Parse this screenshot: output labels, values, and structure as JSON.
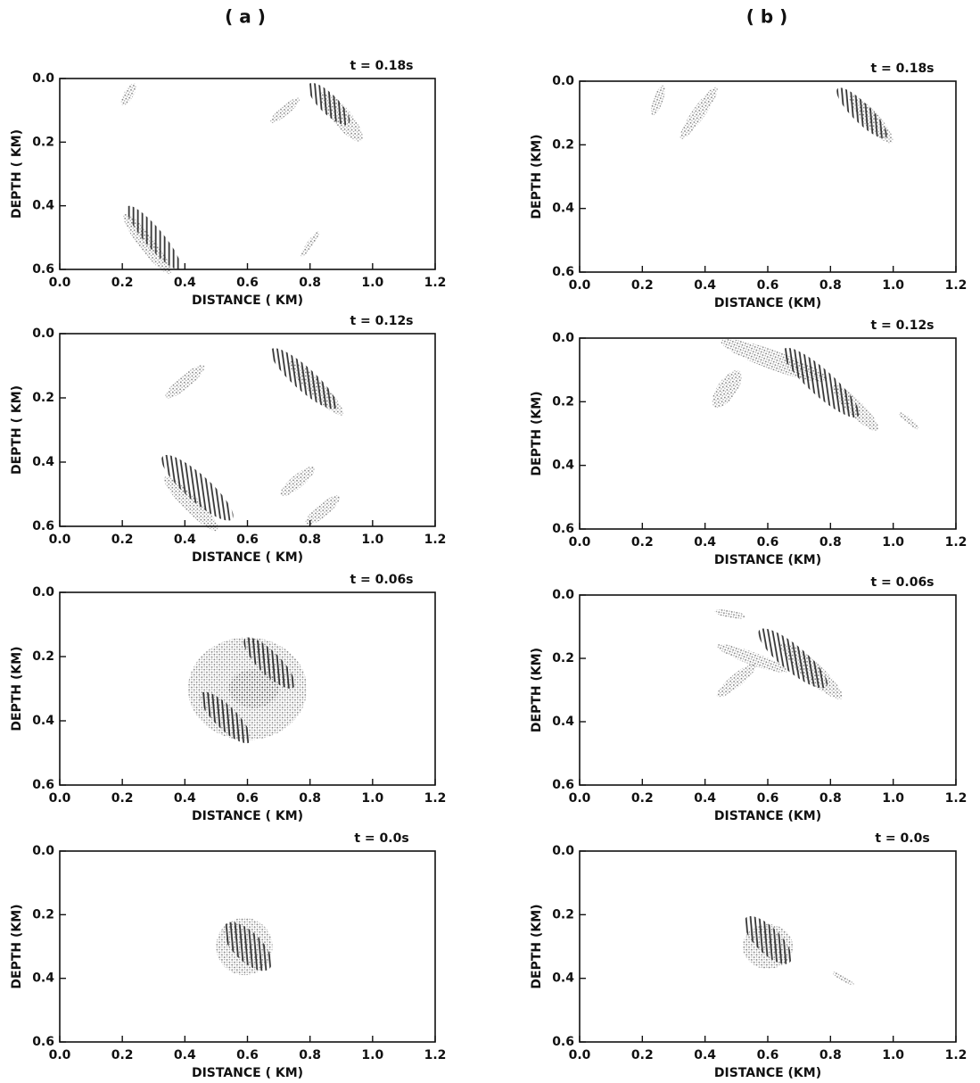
{
  "columns": [
    "( a )",
    "( b )"
  ],
  "chart_data": [
    {
      "type": "field",
      "title": "t = 0.18s",
      "xlabel": "DISTANCE ( KM)",
      "ylabel": "DEPTH ( KM)",
      "xlim": [
        0,
        1.2
      ],
      "ylim": [
        0.6,
        0
      ],
      "xticks": [
        {
          "value": 0,
          "label": "0.0"
        },
        0.2,
        0.4,
        0.6,
        0.8,
        {
          "value": 1,
          "label": "1.0"
        },
        1.2
      ],
      "yticks": [
        {
          "value": 0,
          "label": "0.0"
        },
        0.2,
        0.4,
        0.6
      ]
    },
    {
      "type": "field",
      "title": "t = 0.18s",
      "xlabel": "DISTANCE (KM)",
      "ylabel": "DEPTH (KM)",
      "xlim": [
        0,
        1.2
      ],
      "ylim": [
        0.6,
        0
      ],
      "xticks": [
        {
          "value": 0,
          "label": "0.0"
        },
        0.2,
        0.4,
        0.6,
        0.8,
        {
          "value": 1,
          "label": "1.0"
        },
        1.2
      ],
      "yticks": [
        {
          "value": 0,
          "label": "0.0"
        },
        0.2,
        0.4,
        0.6
      ]
    },
    {
      "type": "field",
      "title": "t = 0.12s",
      "xlabel": "DISTANCE ( KM)",
      "ylabel": "DEPTH ( KM)",
      "xlim": [
        0,
        1.2
      ],
      "ylim": [
        0.6,
        0
      ],
      "xticks": [
        {
          "value": 0,
          "label": "0.0"
        },
        0.2,
        0.4,
        0.6,
        0.8,
        {
          "value": 1,
          "label": "1.0"
        },
        1.2
      ],
      "yticks": [
        {
          "value": 0,
          "label": "0.0"
        },
        0.2,
        0.4,
        0.6
      ]
    },
    {
      "type": "field",
      "title": "t = 0.12s",
      "xlabel": "DISTANCE (KM)",
      "ylabel": "DEPTH (KM)",
      "xlim": [
        0,
        1.2
      ],
      "ylim": [
        0.6,
        0
      ],
      "xticks": [
        {
          "value": 0,
          "label": "0.0"
        },
        0.2,
        0.4,
        0.6,
        0.8,
        {
          "value": 1,
          "label": "1.0"
        },
        1.2
      ],
      "yticks": [
        {
          "value": 0,
          "label": "0.0"
        },
        0.2,
        0.4,
        0.6
      ]
    },
    {
      "type": "field",
      "title": "t = 0.06s",
      "xlabel": "DISTANCE ( KM)",
      "ylabel": "DEPTH (KM)",
      "xlim": [
        0,
        1.2
      ],
      "ylim": [
        0.6,
        0
      ],
      "xticks": [
        {
          "value": 0,
          "label": "0.0"
        },
        0.2,
        0.4,
        0.6,
        0.8,
        {
          "value": 1,
          "label": "1.0"
        },
        1.2
      ],
      "yticks": [
        {
          "value": 0,
          "label": "0.0"
        },
        0.2,
        0.4,
        0.6
      ]
    },
    {
      "type": "field",
      "title": "t = 0.06s",
      "xlabel": "DISTANCE (KM)",
      "ylabel": "DEPTH (KM)",
      "xlim": [
        0,
        1.2
      ],
      "ylim": [
        0.6,
        0
      ],
      "xticks": [
        {
          "value": 0,
          "label": "0.0"
        },
        0.2,
        0.4,
        0.6,
        0.8,
        {
          "value": 1,
          "label": "1.0"
        },
        1.2
      ],
      "yticks": [
        {
          "value": 0,
          "label": "0.0"
        },
        0.2,
        0.4,
        0.6
      ]
    },
    {
      "type": "field",
      "title": "t = 0.0s",
      "xlabel": "DISTANCE ( KM)",
      "ylabel": "DEPTH (KM)",
      "xlim": [
        0,
        1.2
      ],
      "ylim": [
        0.6,
        0
      ],
      "xticks": [
        {
          "value": 0,
          "label": "0.0"
        },
        0.2,
        0.4,
        0.6,
        0.8,
        {
          "value": 1,
          "label": "1.0"
        },
        1.2
      ],
      "yticks": [
        {
          "value": 0,
          "label": "0.0"
        },
        0.2,
        0.4,
        0.6
      ]
    },
    {
      "type": "field",
      "title": "t = 0.0s",
      "xlabel": "DISTANCE (KM)",
      "ylabel": "DEPTH (KM)",
      "xlim": [
        0,
        1.2
      ],
      "ylim": [
        0.6,
        0
      ],
      "xticks": [
        {
          "value": 0,
          "label": "0.0"
        },
        0.2,
        0.4,
        0.6,
        0.8,
        {
          "value": 1,
          "label": "1.0"
        },
        1.2
      ],
      "yticks": [
        {
          "value": 0,
          "label": "0.0"
        },
        0.2,
        0.4,
        0.6
      ]
    }
  ]
}
